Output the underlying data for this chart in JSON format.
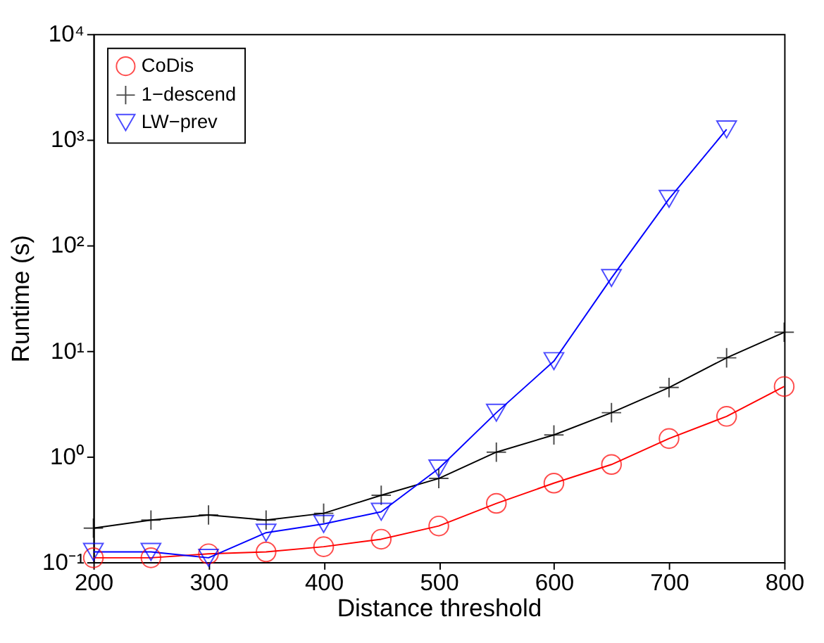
{
  "chart_data": {
    "type": "line",
    "xlabel": "Distance threshold",
    "ylabel": "Runtime (s)",
    "x": [
      200,
      250,
      300,
      350,
      400,
      450,
      500,
      550,
      600,
      650,
      700,
      750,
      800
    ],
    "series": [
      {
        "name": "CoDis",
        "color": "#ff0000",
        "marker": "circle",
        "values": [
          0.11,
          0.11,
          0.12,
          0.125,
          0.14,
          0.165,
          0.22,
          0.36,
          0.56,
          0.84,
          1.48,
          2.4,
          4.6
        ]
      },
      {
        "name": "1−descend",
        "color": "#000000",
        "marker": "cross",
        "values": [
          0.21,
          0.25,
          0.28,
          0.25,
          0.29,
          0.43,
          0.62,
          1.1,
          1.6,
          2.6,
          4.5,
          8.6,
          15
        ]
      },
      {
        "name": "LW−prev",
        "color": "#0000ff",
        "marker": "triangle",
        "values": [
          0.125,
          0.125,
          0.11,
          0.19,
          0.23,
          0.3,
          0.77,
          2.6,
          8,
          49,
          275,
          1250,
          null
        ]
      }
    ],
    "xlim": [
      200,
      800
    ],
    "xticks": [
      200,
      300,
      400,
      500,
      600,
      700,
      800
    ],
    "ylim": [
      0.1,
      10000
    ],
    "log": true,
    "yticks": [
      {
        "value": 0.1,
        "label": "10⁻¹"
      },
      {
        "value": 1,
        "label": "10⁰"
      },
      {
        "value": 10,
        "label": "10¹"
      },
      {
        "value": 100,
        "label": "10²"
      },
      {
        "value": 1000,
        "label": "10³"
      },
      {
        "value": 10000,
        "label": "10⁴"
      }
    ],
    "grid": false,
    "legend": "top left",
    "line_style": "solid"
  }
}
